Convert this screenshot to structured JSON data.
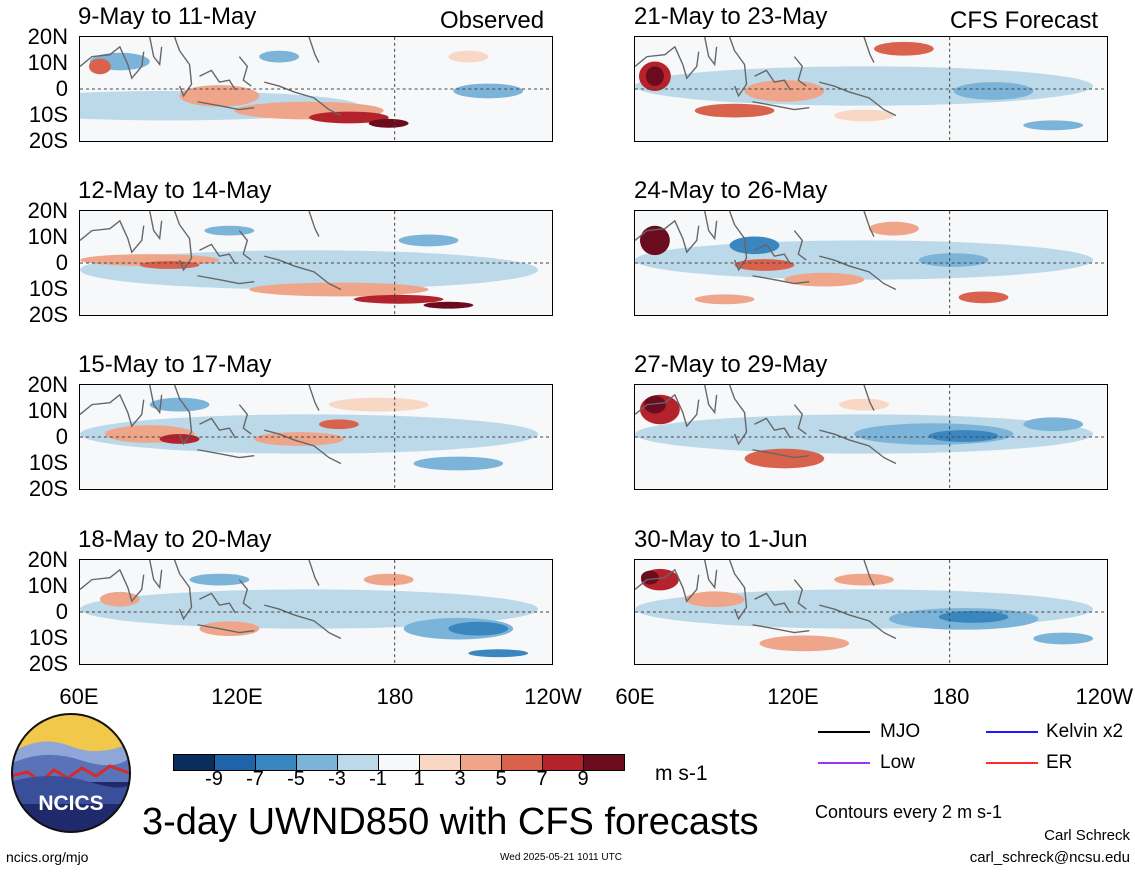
{
  "header": {
    "left_label": "Observed",
    "right_label": "CFS Forecast"
  },
  "panels": {
    "observed": [
      {
        "title": "9-May to 11-May"
      },
      {
        "title": "12-May to 14-May"
      },
      {
        "title": "15-May to 17-May"
      },
      {
        "title": "18-May to 20-May"
      }
    ],
    "forecast": [
      {
        "title": "21-May to 23-May"
      },
      {
        "title": "24-May to 26-May"
      },
      {
        "title": "27-May to 29-May"
      },
      {
        "title": "30-May to 1-Jun"
      }
    ]
  },
  "axes": {
    "lat_labels": [
      "20N",
      "10N",
      "0",
      "10S",
      "20S"
    ],
    "lon_labels": [
      "60E",
      "120E",
      "180",
      "120W"
    ]
  },
  "colorbar": {
    "tick_labels": [
      "-9",
      "-7",
      "-5",
      "-3",
      "-1",
      "1",
      "3",
      "5",
      "7",
      "9"
    ],
    "colors": [
      "#0a2e5c",
      "#1f63a8",
      "#3a87c0",
      "#7cb3d8",
      "#bcd9ea",
      "#f6f8fa",
      "#f8d7c4",
      "#eea58a",
      "#d9624d",
      "#b4232b",
      "#6b0b1e"
    ],
    "units": "m s-1"
  },
  "legend": {
    "items": [
      {
        "label": "MJO",
        "color": "#000000"
      },
      {
        "label": "Kelvin x2",
        "color": "#1a1aff"
      },
      {
        "label": "Low",
        "color": "#9933ff"
      },
      {
        "label": "ER",
        "color": "#ff2a2a"
      }
    ],
    "contour_note": "Contours every 2 m s-1"
  },
  "footer": {
    "title": "3-day UWND850 with CFS forecasts",
    "logo_text": "NCICS",
    "url": "ncics.org/mjo",
    "timestamp": "Wed 2025-05-21 1011 UTC",
    "author": "Carl Schreck",
    "email": "carl_schreck@ncsu.edu"
  }
}
